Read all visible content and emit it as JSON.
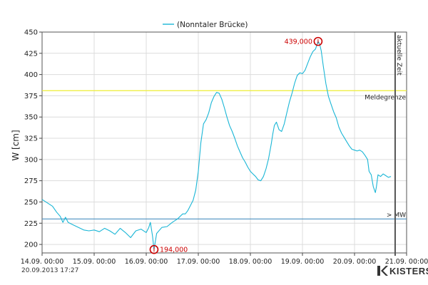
{
  "chart_data": {
    "type": "line",
    "legend": "(Nonntaler Brücke)",
    "ylabel": "W [cm]",
    "xlabel": "",
    "ylim": [
      190,
      450
    ],
    "xlim": [
      "14.09. 00:00",
      "21.09. 00:00"
    ],
    "y_ticks": [
      "200",
      "225",
      "250",
      "275",
      "300",
      "325",
      "350",
      "375",
      "400",
      "425",
      "450"
    ],
    "x_ticks": [
      "14.09. 00:00",
      "15.09. 00:00",
      "16.09. 00:00",
      "17.09. 00:00",
      "18.09. 00:00",
      "19.09. 00:00",
      "20.09. 00:00",
      "21.09. 00:00"
    ],
    "grid": true,
    "series": [
      {
        "name": "(Nonntaler Brücke)",
        "color": "#1ab6d6",
        "points": [
          [
            0.0,
            253
          ],
          [
            0.1,
            249
          ],
          [
            0.2,
            245
          ],
          [
            0.28,
            238
          ],
          [
            0.35,
            233
          ],
          [
            0.4,
            226
          ],
          [
            0.45,
            232
          ],
          [
            0.5,
            226
          ],
          [
            0.6,
            223
          ],
          [
            0.7,
            220
          ],
          [
            0.8,
            217
          ],
          [
            0.9,
            216
          ],
          [
            1.0,
            217
          ],
          [
            1.1,
            215
          ],
          [
            1.2,
            219
          ],
          [
            1.3,
            216
          ],
          [
            1.4,
            212
          ],
          [
            1.5,
            219
          ],
          [
            1.6,
            214
          ],
          [
            1.7,
            208
          ],
          [
            1.8,
            216
          ],
          [
            1.9,
            218
          ],
          [
            2.0,
            214
          ],
          [
            2.05,
            220
          ],
          [
            2.08,
            226
          ],
          [
            2.12,
            210
          ],
          [
            2.15,
            194
          ],
          [
            2.2,
            213
          ],
          [
            2.3,
            220
          ],
          [
            2.4,
            221
          ],
          [
            2.5,
            226
          ],
          [
            2.6,
            230
          ],
          [
            2.7,
            236
          ],
          [
            2.75,
            236
          ],
          [
            2.8,
            240
          ],
          [
            2.9,
            252
          ],
          [
            2.95,
            264
          ],
          [
            3.0,
            286
          ],
          [
            3.05,
            320
          ],
          [
            3.1,
            342
          ],
          [
            3.15,
            347
          ],
          [
            3.2,
            355
          ],
          [
            3.25,
            367
          ],
          [
            3.3,
            374
          ],
          [
            3.35,
            379
          ],
          [
            3.4,
            378
          ],
          [
            3.45,
            371
          ],
          [
            3.5,
            361
          ],
          [
            3.55,
            350
          ],
          [
            3.6,
            340
          ],
          [
            3.65,
            333
          ],
          [
            3.7,
            325
          ],
          [
            3.75,
            316
          ],
          [
            3.8,
            309
          ],
          [
            3.85,
            302
          ],
          [
            3.9,
            297
          ],
          [
            3.95,
            291
          ],
          [
            4.0,
            286
          ],
          [
            4.05,
            283
          ],
          [
            4.1,
            280
          ],
          [
            4.15,
            276
          ],
          [
            4.2,
            275
          ],
          [
            4.25,
            280
          ],
          [
            4.3,
            289
          ],
          [
            4.35,
            301
          ],
          [
            4.4,
            318
          ],
          [
            4.43,
            330
          ],
          [
            4.46,
            340
          ],
          [
            4.5,
            344
          ],
          [
            4.55,
            335
          ],
          [
            4.6,
            333
          ],
          [
            4.65,
            342
          ],
          [
            4.7,
            355
          ],
          [
            4.75,
            368
          ],
          [
            4.8,
            378
          ],
          [
            4.85,
            390
          ],
          [
            4.9,
            399
          ],
          [
            4.95,
            402
          ],
          [
            5.0,
            401
          ],
          [
            5.05,
            405
          ],
          [
            5.1,
            413
          ],
          [
            5.15,
            421
          ],
          [
            5.2,
            427
          ],
          [
            5.25,
            430
          ],
          [
            5.3,
            439
          ],
          [
            5.33,
            436
          ],
          [
            5.36,
            428
          ],
          [
            5.4,
            410
          ],
          [
            5.45,
            389
          ],
          [
            5.5,
            374
          ],
          [
            5.55,
            365
          ],
          [
            5.6,
            356
          ],
          [
            5.65,
            349
          ],
          [
            5.7,
            338
          ],
          [
            5.75,
            331
          ],
          [
            5.8,
            326
          ],
          [
            5.85,
            321
          ],
          [
            5.9,
            316
          ],
          [
            5.95,
            312
          ],
          [
            6.0,
            311
          ],
          [
            6.05,
            310
          ],
          [
            6.1,
            311
          ],
          [
            6.15,
            309
          ],
          [
            6.2,
            305
          ],
          [
            6.25,
            300
          ],
          [
            6.28,
            286
          ],
          [
            6.32,
            282
          ],
          [
            6.36,
            268
          ],
          [
            6.4,
            261
          ],
          [
            6.42,
            268
          ],
          [
            6.45,
            282
          ],
          [
            6.5,
            280
          ],
          [
            6.55,
            283
          ],
          [
            6.6,
            281
          ],
          [
            6.65,
            279
          ],
          [
            6.7,
            280
          ]
        ]
      }
    ],
    "thresholds": [
      {
        "label": "Meldegrenze",
        "value": 381,
        "color": "#eeee33"
      },
      {
        "label": "> MW",
        "value": 230,
        "color": "#4a90c0"
      }
    ],
    "current_time": {
      "label": "aktuelle Zeit",
      "x": 6.78
    },
    "annotations": [
      {
        "label": "439,000",
        "x": 5.3,
        "y": 439,
        "type": "max"
      },
      {
        "label": "194,000",
        "x": 2.15,
        "y": 194,
        "type": "min"
      }
    ]
  },
  "footer": {
    "timestamp": "20.09.2013  17:27",
    "logo": "KISTERS"
  }
}
